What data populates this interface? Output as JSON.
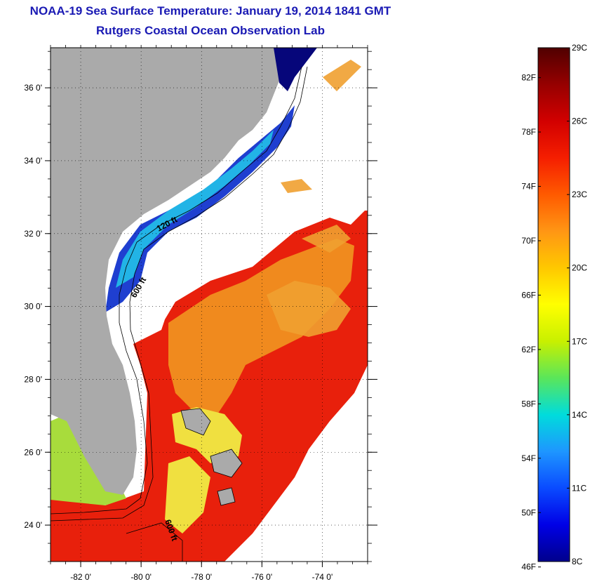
{
  "title_line1": "NOAA-19 Sea Surface Temperature:  January 19, 2014 1841 GMT",
  "title_line2": "Rutgers Coastal Ocean Observation Lab",
  "map": {
    "lon_ticks": [
      "-82 0'",
      "-80 0'",
      "-78 0'",
      "-76 0'",
      "-74 0'"
    ],
    "lon_values": [
      -82,
      -80,
      -78,
      -76,
      -74
    ],
    "lat_ticks": [
      "24 0'",
      "26 0'",
      "28 0'",
      "30 0'",
      "32 0'",
      "34 0'",
      "36 0'"
    ],
    "lat_values": [
      24,
      26,
      28,
      30,
      32,
      34,
      36
    ],
    "lon_range": [
      -83,
      -72.5
    ],
    "lat_range": [
      23,
      37.1
    ],
    "contour_labels": [
      "120 ft",
      "600 ft",
      "600 ft"
    ],
    "colors": {
      "land": "#aaaaaa",
      "gulf_stream": "#e8200c",
      "shelf_cold": "#1f3fd0"
    }
  },
  "colorbar": {
    "fahrenheit_labels": [
      "82F",
      "78F",
      "74F",
      "70F",
      "66F",
      "62F",
      "58F",
      "54F",
      "50F",
      "46F"
    ],
    "fahrenheit_values": [
      82,
      78,
      74,
      70,
      66,
      62,
      58,
      54,
      50,
      46
    ],
    "celsius_labels": [
      "29C",
      "26C",
      "23C",
      "20C",
      "17C",
      "14C",
      "11C",
      "8C"
    ],
    "celsius_values": [
      29,
      26,
      23,
      20,
      17,
      14,
      11,
      8
    ],
    "range_c": [
      8,
      29
    ],
    "colors": [
      "#00008c",
      "#0000e6",
      "#0a4bff",
      "#1e96ff",
      "#00dcdc",
      "#5ae65a",
      "#c8f000",
      "#ffff00",
      "#ffc800",
      "#ff9614",
      "#ff5a00",
      "#f51e00",
      "#d20000",
      "#960000",
      "#500000"
    ]
  }
}
